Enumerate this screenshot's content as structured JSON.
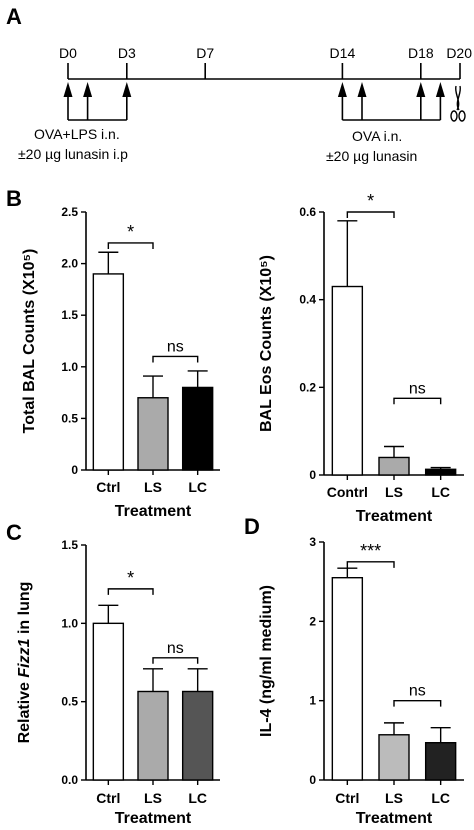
{
  "panels": {
    "a": "A",
    "b": "B",
    "c": "C",
    "d": "D"
  },
  "timeline": {
    "days": [
      "D0",
      "D3",
      "D7",
      "D14",
      "D18",
      "D20"
    ],
    "day_values": [
      0,
      3,
      7,
      14,
      18,
      20
    ],
    "induction_days": [
      0,
      1,
      3
    ],
    "challenge_days": [
      14,
      15,
      18,
      19
    ],
    "induction_text": [
      "OVA+LPS i.n.",
      "±20 µg lunasin i.p"
    ],
    "challenge_text": [
      "OVA i.n.",
      "±20 µg lunasin"
    ],
    "end_marker": "scissors-icon"
  },
  "chart_data": [
    {
      "id": "b-left",
      "type": "bar",
      "categories": [
        "Ctrl",
        "LS",
        "LC"
      ],
      "values": [
        1.9,
        0.7,
        0.8
      ],
      "errors": [
        0.21,
        0.21,
        0.16
      ],
      "colors": [
        "#ffffff",
        "#aaaaaa",
        "#000000"
      ],
      "xlabel": "Treatment",
      "ylabel": "Total BAL Counts (X10⁵)",
      "ylim": [
        0,
        2.5
      ],
      "yticks": [
        0,
        0.5,
        1.0,
        1.5,
        2.0,
        2.5
      ],
      "ytick_labels": [
        "0",
        "0.5",
        "1.0",
        "1.5",
        "2.0",
        "2.5"
      ],
      "significance": [
        {
          "from": 0,
          "to": 1,
          "label": "*",
          "y": 2.2
        },
        {
          "from": 1,
          "to": 2,
          "label": "ns",
          "y": 1.1
        }
      ]
    },
    {
      "id": "b-right",
      "type": "bar",
      "categories": [
        "Contrl",
        "LS",
        "LC"
      ],
      "values": [
        0.43,
        0.04,
        0.013
      ],
      "errors": [
        0.15,
        0.025,
        0.004
      ],
      "colors": [
        "#ffffff",
        "#aaaaaa",
        "#000000"
      ],
      "xlabel": "Treatment",
      "ylabel": "BAL Eos Counts (X10⁵)",
      "ylim": [
        0,
        0.6
      ],
      "yticks": [
        0,
        0.2,
        0.4,
        0.6
      ],
      "ytick_labels": [
        "0",
        "0.2",
        "0.4",
        "0.6"
      ],
      "significance": [
        {
          "from": 0,
          "to": 1,
          "label": "*",
          "y": 0.6
        },
        {
          "from": 1,
          "to": 2,
          "label": "ns",
          "y": 0.175
        }
      ]
    },
    {
      "id": "c",
      "type": "bar",
      "categories": [
        "Ctrl",
        "LS",
        "LC"
      ],
      "values": [
        1.0,
        0.565,
        0.565
      ],
      "errors": [
        0.115,
        0.145,
        0.145
      ],
      "colors": [
        "#ffffff",
        "#aaaaaa",
        "#555555"
      ],
      "xlabel": "Treatment",
      "ylabel_parts": [
        "Relative ",
        "Fizz1",
        " in lung"
      ],
      "ylim": [
        0,
        1.5
      ],
      "yticks": [
        0,
        0.5,
        1.0,
        1.5
      ],
      "ytick_labels": [
        "0.0",
        "0.5",
        "1.0",
        "1.5"
      ],
      "significance": [
        {
          "from": 0,
          "to": 1,
          "label": "*",
          "y": 1.22
        },
        {
          "from": 1,
          "to": 2,
          "label": "ns",
          "y": 0.78
        }
      ]
    },
    {
      "id": "d",
      "type": "bar",
      "categories": [
        "Ctrl",
        "LS",
        "LC"
      ],
      "values": [
        2.55,
        0.57,
        0.47
      ],
      "errors": [
        0.12,
        0.15,
        0.19
      ],
      "colors": [
        "#ffffff",
        "#bbbbbb",
        "#222222"
      ],
      "xlabel": "Treatment",
      "ylabel": "IL-4 (ng/ml medium)",
      "ylim": [
        0,
        3
      ],
      "yticks": [
        0,
        1,
        2,
        3
      ],
      "ytick_labels": [
        "0",
        "1",
        "2",
        "3"
      ],
      "significance": [
        {
          "from": 0,
          "to": 1,
          "label": "***",
          "y": 2.75
        },
        {
          "from": 1,
          "to": 2,
          "label": "ns",
          "y": 1.0
        }
      ]
    }
  ]
}
